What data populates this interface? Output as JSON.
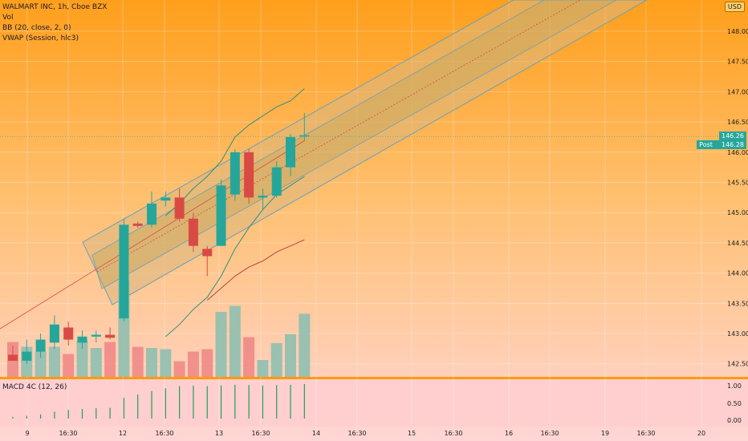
{
  "legend": {
    "title": "WALMART INC, 1h, Cboe BZX",
    "vol": "Vol",
    "bb": "BB (20, close, 2, 0)",
    "vwap": "VWAP (Session, hlc3)",
    "macd": "MACD 4C (12, 26)"
  },
  "currency": "USD",
  "price_tags": {
    "last": "146.26",
    "post_label": "Post",
    "post_value": "146.28"
  },
  "colors": {
    "up": "#26a69a",
    "down": "#d94a45",
    "vol_up": "#8fbfb0",
    "vol_down": "#f08a87",
    "bb_line": "#2f8f82",
    "vwap": "#b8433f",
    "channel": "#3a7bd5"
  },
  "chart_data": {
    "type": "candlestick",
    "y_axis": {
      "min": 142.5,
      "max": 148.0,
      "ticks": [
        "148.00",
        "147.50",
        "147.00",
        "146.50",
        "146.00",
        "145.50",
        "145.00",
        "144.50",
        "144.00",
        "143.50",
        "143.00",
        "142.50"
      ]
    },
    "x_axis_labels": [
      "9",
      "16:30",
      "12",
      "16:30",
      "13",
      "16:30",
      "14",
      "16:30",
      "15",
      "16:30",
      "16",
      "16:30",
      "19",
      "16:30",
      "20"
    ],
    "candles": [
      {
        "o": 142.65,
        "h": 142.8,
        "l": 142.55,
        "c": 142.55
      },
      {
        "o": 142.55,
        "h": 142.9,
        "l": 142.5,
        "c": 142.7
      },
      {
        "o": 142.7,
        "h": 143.0,
        "l": 142.6,
        "c": 142.9
      },
      {
        "o": 142.85,
        "h": 143.3,
        "l": 142.75,
        "c": 143.15
      },
      {
        "o": 143.1,
        "h": 143.2,
        "l": 142.8,
        "c": 142.9
      },
      {
        "o": 142.85,
        "h": 143.05,
        "l": 142.75,
        "c": 142.95
      },
      {
        "o": 142.95,
        "h": 143.05,
        "l": 142.85,
        "c": 142.98
      },
      {
        "o": 142.98,
        "h": 143.1,
        "l": 142.9,
        "c": 142.93
      },
      {
        "o": 143.25,
        "h": 144.9,
        "l": 143.2,
        "c": 144.8
      },
      {
        "o": 144.82,
        "h": 144.85,
        "l": 144.75,
        "c": 144.78
      },
      {
        "o": 144.8,
        "h": 145.35,
        "l": 144.75,
        "c": 145.15
      },
      {
        "o": 145.2,
        "h": 145.35,
        "l": 145.1,
        "c": 145.25
      },
      {
        "o": 145.25,
        "h": 145.4,
        "l": 144.85,
        "c": 144.9
      },
      {
        "o": 144.9,
        "h": 145.0,
        "l": 144.35,
        "c": 144.45
      },
      {
        "o": 144.4,
        "h": 144.45,
        "l": 143.95,
        "c": 144.28
      },
      {
        "o": 144.45,
        "h": 145.55,
        "l": 144.45,
        "c": 145.45
      },
      {
        "o": 145.3,
        "h": 146.05,
        "l": 145.2,
        "c": 146.0
      },
      {
        "o": 146.0,
        "h": 146.05,
        "l": 145.15,
        "c": 145.25
      },
      {
        "o": 145.25,
        "h": 145.4,
        "l": 145.05,
        "c": 145.28
      },
      {
        "o": 145.28,
        "h": 145.85,
        "l": 145.25,
        "c": 145.75
      },
      {
        "o": 145.75,
        "h": 146.3,
        "l": 145.6,
        "c": 146.25
      },
      {
        "o": 146.26,
        "h": 146.65,
        "l": 146.2,
        "c": 146.28
      }
    ],
    "volume": [
      58,
      50,
      42,
      50,
      38,
      60,
      48,
      58,
      160,
      50,
      48,
      46,
      26,
      42,
      46,
      108,
      118,
      66,
      28,
      56,
      71,
      105
    ],
    "bb_upper": [
      null,
      null,
      null,
      null,
      null,
      null,
      null,
      null,
      null,
      null,
      null,
      144.95,
      145.15,
      145.4,
      145.6,
      145.85,
      146.25,
      146.45,
      146.6,
      146.75,
      146.85,
      147.05
    ],
    "bb_lower": [
      null,
      null,
      null,
      null,
      null,
      null,
      null,
      null,
      null,
      null,
      null,
      142.95,
      143.15,
      143.4,
      143.6,
      143.95,
      144.4,
      144.75,
      145.05,
      145.3,
      145.45,
      145.6
    ],
    "vwap": [
      null,
      null,
      null,
      null,
      null,
      null,
      null,
      null,
      null,
      null,
      null,
      null,
      null,
      null,
      143.55,
      143.75,
      143.95,
      144.1,
      144.2,
      144.35,
      144.45,
      144.55
    ],
    "macd_hist": [
      0.05,
      0.08,
      0.12,
      0.2,
      0.25,
      0.28,
      0.3,
      0.31,
      0.6,
      0.7,
      0.8,
      0.88,
      0.94,
      0.96,
      0.94,
      0.96,
      0.98,
      0.97,
      0.96,
      0.97,
      0.98,
      1.0
    ],
    "macd_axis": {
      "min": 0,
      "max": 1.0,
      "ticks": [
        "1.00",
        "0.50",
        "0.00"
      ]
    }
  }
}
